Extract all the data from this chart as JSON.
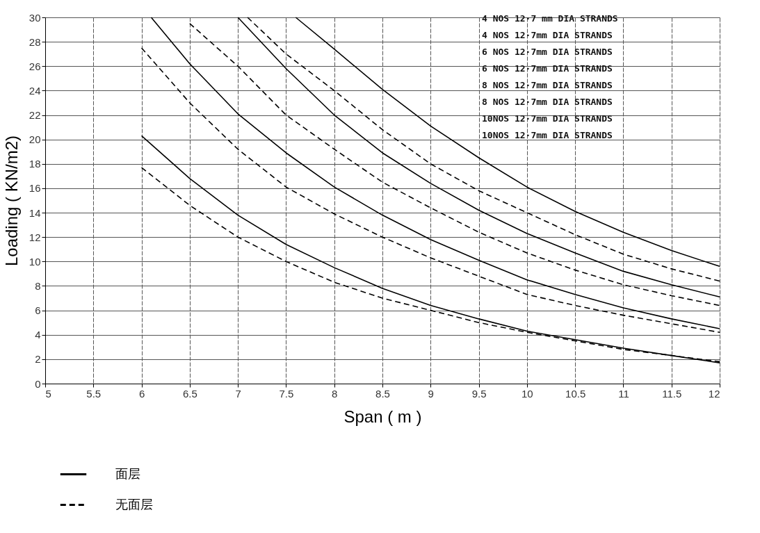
{
  "chart_data": {
    "type": "line",
    "xlabel": "Span ( m )",
    "ylabel": "Loading ( KN/m2)",
    "xlim": [
      5,
      12
    ],
    "xticks": [
      5,
      5.5,
      6,
      6.5,
      7,
      7.5,
      8,
      8.5,
      9,
      9.5,
      10,
      10.5,
      11,
      11.5,
      12
    ],
    "ylim": [
      0,
      30
    ],
    "yticks": [
      0,
      2,
      4,
      6,
      8,
      10,
      12,
      14,
      16,
      18,
      20,
      22,
      24,
      26,
      28,
      30
    ],
    "grid": true,
    "legend": "bottom",
    "marker": "none",
    "annotations": [
      "4 NOS 12·7 mm DIA STRANDS",
      "4 NOS 12·7mm DIA STRANDS",
      "6 NOS 12·7mm DIA STRANDS",
      "6 NOS 12·7mm DIA STRANDS",
      "8 NOS 12·7mm DIA STRANDS",
      "8 NOS 12·7mm DIA STRANDS",
      "10NOS 12·7mm DIA STRANDS",
      "10NOS 12·7mm DIA STRANDS"
    ],
    "series": [
      {
        "name": "面层",
        "color": "#000000",
        "line_style": "solid",
        "x": [
          6,
          6.5,
          7,
          7.5,
          8,
          8.5,
          9,
          9.5,
          10,
          10.5,
          11,
          11.5,
          12
        ],
        "values": [
          20.3,
          16.8,
          13.8,
          11.4,
          9.5,
          7.8,
          6.4,
          5.3,
          4.3,
          3.6,
          2.9,
          2.3,
          1.7
        ]
      },
      {
        "name": "无面层",
        "color": "#000000",
        "line_style": "dashed",
        "x": [
          6,
          6.5,
          7,
          7.5,
          8,
          8.5,
          9,
          9.5,
          10,
          10.5,
          11,
          11.5,
          12
        ],
        "values": [
          17.7,
          14.6,
          12.0,
          10.0,
          8.3,
          7.0,
          6.0,
          5.0,
          4.2,
          3.5,
          2.8,
          2.3,
          1.8
        ]
      },
      {
        "color": "#000000",
        "line_style": "solid",
        "x": [
          6.1,
          6.5,
          7,
          7.5,
          8,
          8.5,
          9,
          9.5,
          10,
          10.5,
          11,
          11.5,
          12
        ],
        "values": [
          30,
          26.2,
          22.1,
          18.9,
          16.1,
          13.8,
          11.8,
          10.1,
          8.5,
          7.3,
          6.2,
          5.3,
          4.5
        ]
      },
      {
        "color": "#000000",
        "line_style": "dashed",
        "x": [
          6,
          6.5,
          7,
          7.5,
          8,
          8.5,
          9,
          9.5,
          10,
          10.5,
          11,
          11.5,
          12
        ],
        "values": [
          27.5,
          23.0,
          19.2,
          16.1,
          13.9,
          12.0,
          10.3,
          8.8,
          7.3,
          6.4,
          5.6,
          4.9,
          4.2
        ]
      },
      {
        "color": "#000000",
        "line_style": "solid",
        "x": [
          7,
          7.5,
          8,
          8.5,
          9,
          9.5,
          10,
          10.5,
          11,
          11.5,
          12
        ],
        "values": [
          30,
          25.8,
          22.0,
          18.9,
          16.4,
          14.2,
          12.3,
          10.7,
          9.2,
          8.1,
          7.1
        ]
      },
      {
        "color": "#000000",
        "line_style": "dashed",
        "x": [
          6.5,
          7,
          7.5,
          8,
          8.5,
          9,
          9.5,
          10,
          10.5,
          11,
          11.5,
          12
        ],
        "values": [
          29.5,
          26.0,
          22.0,
          19.2,
          16.5,
          14.4,
          12.4,
          10.7,
          9.3,
          8.1,
          7.2,
          6.4
        ]
      },
      {
        "color": "#000000",
        "line_style": "solid",
        "x": [
          7.6,
          8,
          8.5,
          9,
          9.5,
          10,
          10.5,
          11,
          11.5,
          12
        ],
        "values": [
          30,
          27.4,
          24.1,
          21.1,
          18.5,
          16.1,
          14.1,
          12.4,
          10.9,
          9.6
        ]
      },
      {
        "color": "#000000",
        "line_style": "dashed",
        "x": [
          7.1,
          7.5,
          8,
          8.5,
          9,
          9.5,
          10,
          10.5,
          11,
          11.5,
          12
        ],
        "values": [
          30,
          27.0,
          24.0,
          20.8,
          18.0,
          15.8,
          14.0,
          12.2,
          10.6,
          9.4,
          8.4
        ]
      }
    ]
  }
}
